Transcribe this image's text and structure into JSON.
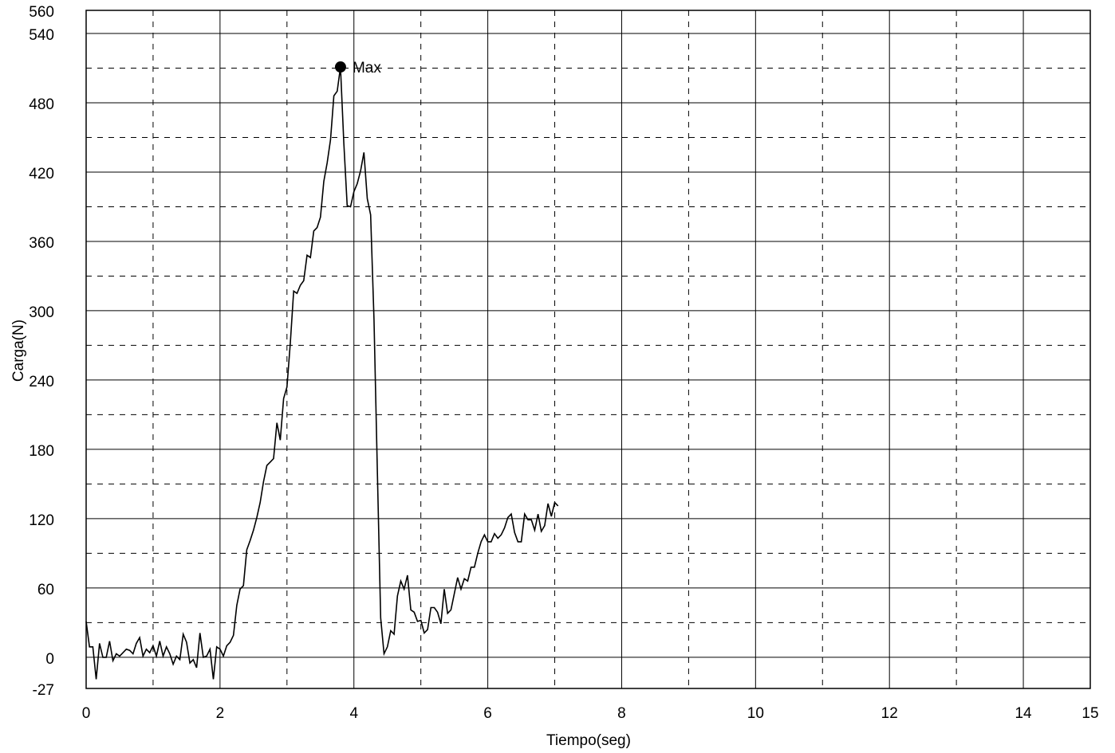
{
  "chart_data": {
    "type": "line",
    "x_label": "Tiempo(seg)",
    "y_label": "Carga(N)",
    "xlim": [
      0,
      15
    ],
    "ylim": [
      -27,
      560
    ],
    "xticks": [
      0,
      2,
      4,
      6,
      8,
      10,
      12,
      14,
      15
    ],
    "yticks": [
      -27,
      0,
      60,
      120,
      180,
      240,
      300,
      360,
      420,
      480,
      540,
      560
    ],
    "x_minor_ticks": [
      1,
      3,
      5,
      7,
      9,
      11,
      13
    ],
    "y_minor_ticks": [
      30,
      90,
      150,
      210,
      270,
      330,
      390,
      450,
      510
    ],
    "grid": true,
    "x": [
      0,
      0.05,
      0.1,
      0.15,
      0.2,
      0.25,
      0.3,
      0.35,
      0.4,
      0.45,
      0.5,
      0.55,
      0.6,
      0.65,
      0.7,
      0.75,
      0.8,
      0.85,
      0.9,
      0.95,
      1,
      1.05,
      1.1,
      1.15,
      1.2,
      1.25,
      1.3,
      1.35,
      1.4,
      1.45,
      1.5,
      1.55,
      1.6,
      1.65,
      1.7,
      1.75,
      1.8,
      1.85,
      1.9,
      1.95,
      2,
      2.05,
      2.1,
      2.15,
      2.2,
      2.25,
      2.3,
      2.35,
      2.4,
      2.45,
      2.5,
      2.55,
      2.6,
      2.65,
      2.7,
      2.75,
      2.8,
      2.85,
      2.9,
      2.95,
      3,
      3.05,
      3.1,
      3.15,
      3.2,
      3.25,
      3.3,
      3.35,
      3.4,
      3.45,
      3.5,
      3.55,
      3.6,
      3.65,
      3.7,
      3.75,
      3.8,
      3.85,
      3.9,
      3.95,
      4,
      4.05,
      4.1,
      4.15,
      4.2,
      4.25,
      4.3,
      4.35,
      4.4,
      4.45,
      4.5,
      4.55,
      4.6,
      4.65,
      4.7,
      4.75,
      4.8,
      4.85,
      4.9,
      4.95,
      5,
      5.05,
      5.1,
      5.15,
      5.2,
      5.25,
      5.3,
      5.35,
      5.4,
      5.45,
      5.5,
      5.55,
      5.6,
      5.65,
      5.7,
      5.75,
      5.8,
      5.85,
      5.9,
      5.95,
      6,
      6.05,
      6.1,
      6.15,
      6.2,
      6.25,
      6.3,
      6.35,
      6.4,
      6.45,
      6.5,
      6.55,
      6.6,
      6.65,
      6.7,
      6.75,
      6.8,
      6.85,
      6.9,
      6.95,
      7,
      7.05
    ],
    "series": [
      {
        "color": "#000000",
        "values": [
          31,
          9,
          9,
          -19,
          12,
          0,
          0,
          14,
          -3,
          3,
          1,
          4,
          7,
          6,
          3,
          12,
          17,
          1,
          7,
          4,
          10,
          1,
          14,
          1,
          9,
          3,
          -6,
          1,
          -2,
          20,
          13,
          -5,
          -2,
          -9,
          21,
          0,
          1,
          7,
          -19,
          9,
          7,
          1,
          10,
          13,
          19,
          45,
          59,
          62,
          93,
          101,
          110,
          121,
          134,
          152,
          166,
          169,
          172,
          203,
          188,
          224,
          234,
          272,
          317,
          315,
          322,
          326,
          348,
          346,
          369,
          372,
          381,
          412,
          428,
          448,
          486,
          490,
          511,
          445,
          391,
          390,
          403,
          410,
          421,
          437,
          397,
          383,
          293,
          162,
          34,
          3,
          9,
          23,
          20,
          53,
          66,
          59,
          71,
          41,
          39,
          31,
          32,
          21,
          24,
          43,
          43,
          39,
          29,
          59,
          38,
          41,
          55,
          69,
          59,
          68,
          66,
          78,
          78,
          90,
          100,
          106,
          100,
          100,
          107,
          103,
          106,
          112,
          121,
          124,
          108,
          100,
          100,
          124,
          119,
          119,
          110,
          124,
          109,
          114,
          133,
          122,
          134,
          131
        ]
      }
    ],
    "annotations": [
      {
        "x": 3.8,
        "y": 511,
        "label": "Max"
      }
    ]
  }
}
